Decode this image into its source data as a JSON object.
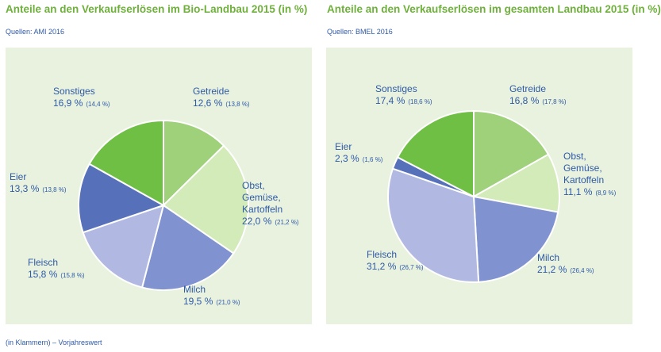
{
  "chart_data": [
    {
      "type": "pie",
      "title": "Anteile an den Verkaufserlösen im Bio-Landbau 2015 (in %)",
      "source": "Quellen: AMI 2016",
      "slices": [
        {
          "name": [
            "Getreide"
          ],
          "value": 12.6,
          "value_text": "12,6 %",
          "prev_text": "(13,8 %)",
          "color": "#9fd07a"
        },
        {
          "name": [
            "Obst,",
            "Gemüse,",
            "Kartoffeln"
          ],
          "value": 22.0,
          "value_text": "22,0 %",
          "prev_text": "(21,2 %)",
          "color": "#d3eab9"
        },
        {
          "name": [
            "Milch"
          ],
          "value": 19.5,
          "value_text": "19,5 %",
          "prev_text": "(21,0 %)",
          "color": "#8092cf"
        },
        {
          "name": [
            "Fleisch"
          ],
          "value": 15.8,
          "value_text": "15,8 %",
          "prev_text": "(15,8 %)",
          "color": "#b1b9e3"
        },
        {
          "name": [
            "Eier"
          ],
          "value": 13.3,
          "value_text": "13,3 %",
          "prev_text": "(13,8 %)",
          "color": "#5670ba"
        },
        {
          "name": [
            "Sonstiges"
          ],
          "value": 16.9,
          "value_text": "16,9 %",
          "prev_text": "(14,4 %)",
          "color": "#6fbf45"
        }
      ]
    },
    {
      "type": "pie",
      "title": "Anteile an den Verkaufserlösen im gesamten Landbau 2015 (in %)",
      "source": "Quellen: BMEL 2016",
      "slices": [
        {
          "name": [
            "Getreide"
          ],
          "value": 16.8,
          "value_text": "16,8 %",
          "prev_text": "(17,8 %)",
          "color": "#9fd07a"
        },
        {
          "name": [
            "Obst,",
            "Gemüse,",
            "Kartoffeln"
          ],
          "value": 11.1,
          "value_text": "11,1 %",
          "prev_text": "(8,9 %)",
          "color": "#d3eab9"
        },
        {
          "name": [
            "Milch"
          ],
          "value": 21.2,
          "value_text": "21,2 %",
          "prev_text": "(26,4 %)",
          "color": "#8092cf"
        },
        {
          "name": [
            "Fleisch"
          ],
          "value": 31.2,
          "value_text": "31,2 %",
          "prev_text": "(26,7 %)",
          "color": "#b1b9e3"
        },
        {
          "name": [
            "Eier"
          ],
          "value": 2.3,
          "value_text": "2,3 %",
          "prev_text": "(1,6 %)",
          "color": "#5670ba"
        },
        {
          "name": [
            "Sonstiges"
          ],
          "value": 17.4,
          "value_text": "17,4 %",
          "prev_text": "(18,6 %)",
          "color": "#6fbf45"
        }
      ]
    }
  ],
  "footnote": "(in Klammern) – Vorjahreswert"
}
